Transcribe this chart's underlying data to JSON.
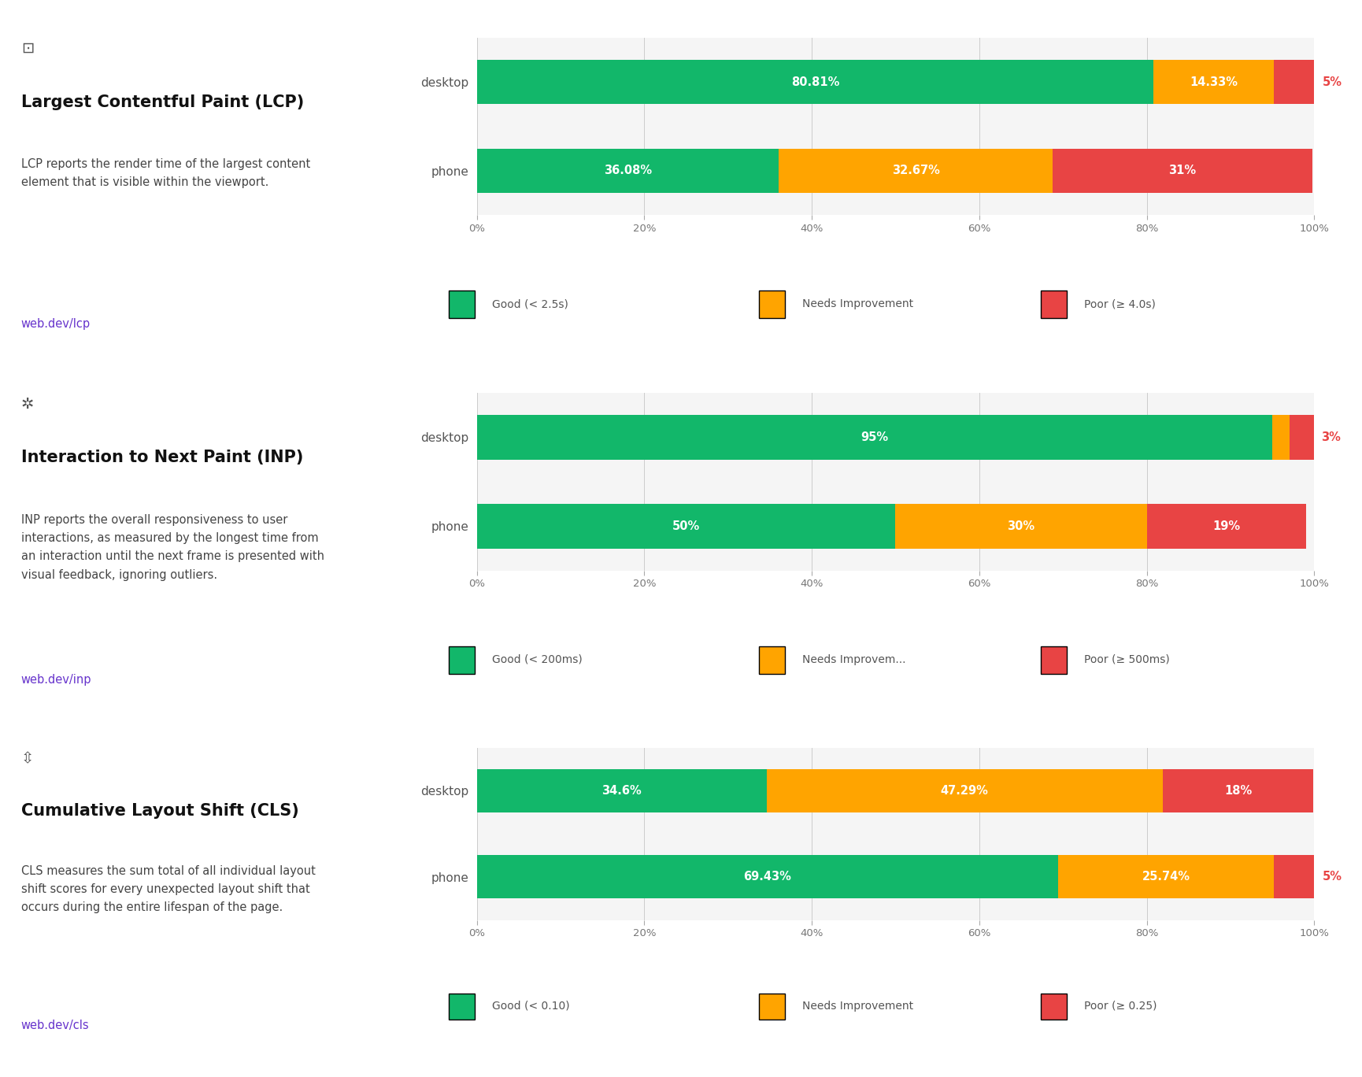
{
  "panels": [
    {
      "title": "Largest Contentful Paint (LCP)",
      "icon": "lcp",
      "description": "LCP reports the render time of the largest content\nelement that is visible within the viewport.",
      "link": "web.dev/lcp",
      "rows": [
        "desktop",
        "phone"
      ],
      "good": [
        80.81,
        36.08
      ],
      "needs": [
        14.33,
        32.67
      ],
      "poor": [
        5,
        31
      ],
      "legend": [
        "Good (< 2.5s)",
        "Needs Improvement",
        "Poor (≥ 4.0s)"
      ],
      "good_label": [
        "80.81%",
        "36.08%"
      ],
      "needs_label": [
        "14.33%",
        "32.67%"
      ],
      "poor_label": [
        "5%",
        "31%"
      ],
      "poor_outside": [
        true,
        false
      ]
    },
    {
      "title": "Interaction to Next Paint (INP)",
      "icon": "inp",
      "description": "INP reports the overall responsiveness to user\ninteractions, as measured by the longest time from\nan interaction until the next frame is presented with\nvisual feedback, ignoring outliers.",
      "link": "web.dev/inp",
      "rows": [
        "desktop",
        "phone"
      ],
      "good": [
        95,
        50
      ],
      "needs": [
        2,
        30
      ],
      "poor": [
        3,
        19
      ],
      "legend": [
        "Good (< 200ms)",
        "Needs Improvem...",
        "Poor (≥ 500ms)"
      ],
      "good_label": [
        "95%",
        "50%"
      ],
      "needs_label": [
        "",
        "30%"
      ],
      "poor_label": [
        "3%",
        "19%"
      ],
      "poor_outside": [
        true,
        false
      ]
    },
    {
      "title": "Cumulative Layout Shift (CLS)",
      "icon": "cls",
      "description": "CLS measures the sum total of all individual layout\nshift scores for every unexpected layout shift that\noccurs during the entire lifespan of the page.",
      "link": "web.dev/cls",
      "rows": [
        "desktop",
        "phone"
      ],
      "good": [
        34.6,
        69.43
      ],
      "needs": [
        47.29,
        25.74
      ],
      "poor": [
        18,
        5
      ],
      "legend": [
        "Good (< 0.10)",
        "Needs Improvement",
        "Poor (≥ 0.25)"
      ],
      "good_label": [
        "34.6%",
        "69.43%"
      ],
      "needs_label": [
        "47.29%",
        "25.74%"
      ],
      "poor_label": [
        "18%",
        "5%"
      ],
      "poor_outside": [
        false,
        true
      ]
    }
  ],
  "good_color": "#12B76A",
  "needs_color": "#FFA400",
  "poor_color": "#E84444",
  "panel_bg": "#f5f5f5",
  "link_color": "#6633CC",
  "tick_labels": [
    "0%",
    "20%",
    "40%",
    "60%",
    "80%",
    "100%"
  ],
  "tick_values": [
    0,
    20,
    40,
    60,
    80,
    100
  ]
}
